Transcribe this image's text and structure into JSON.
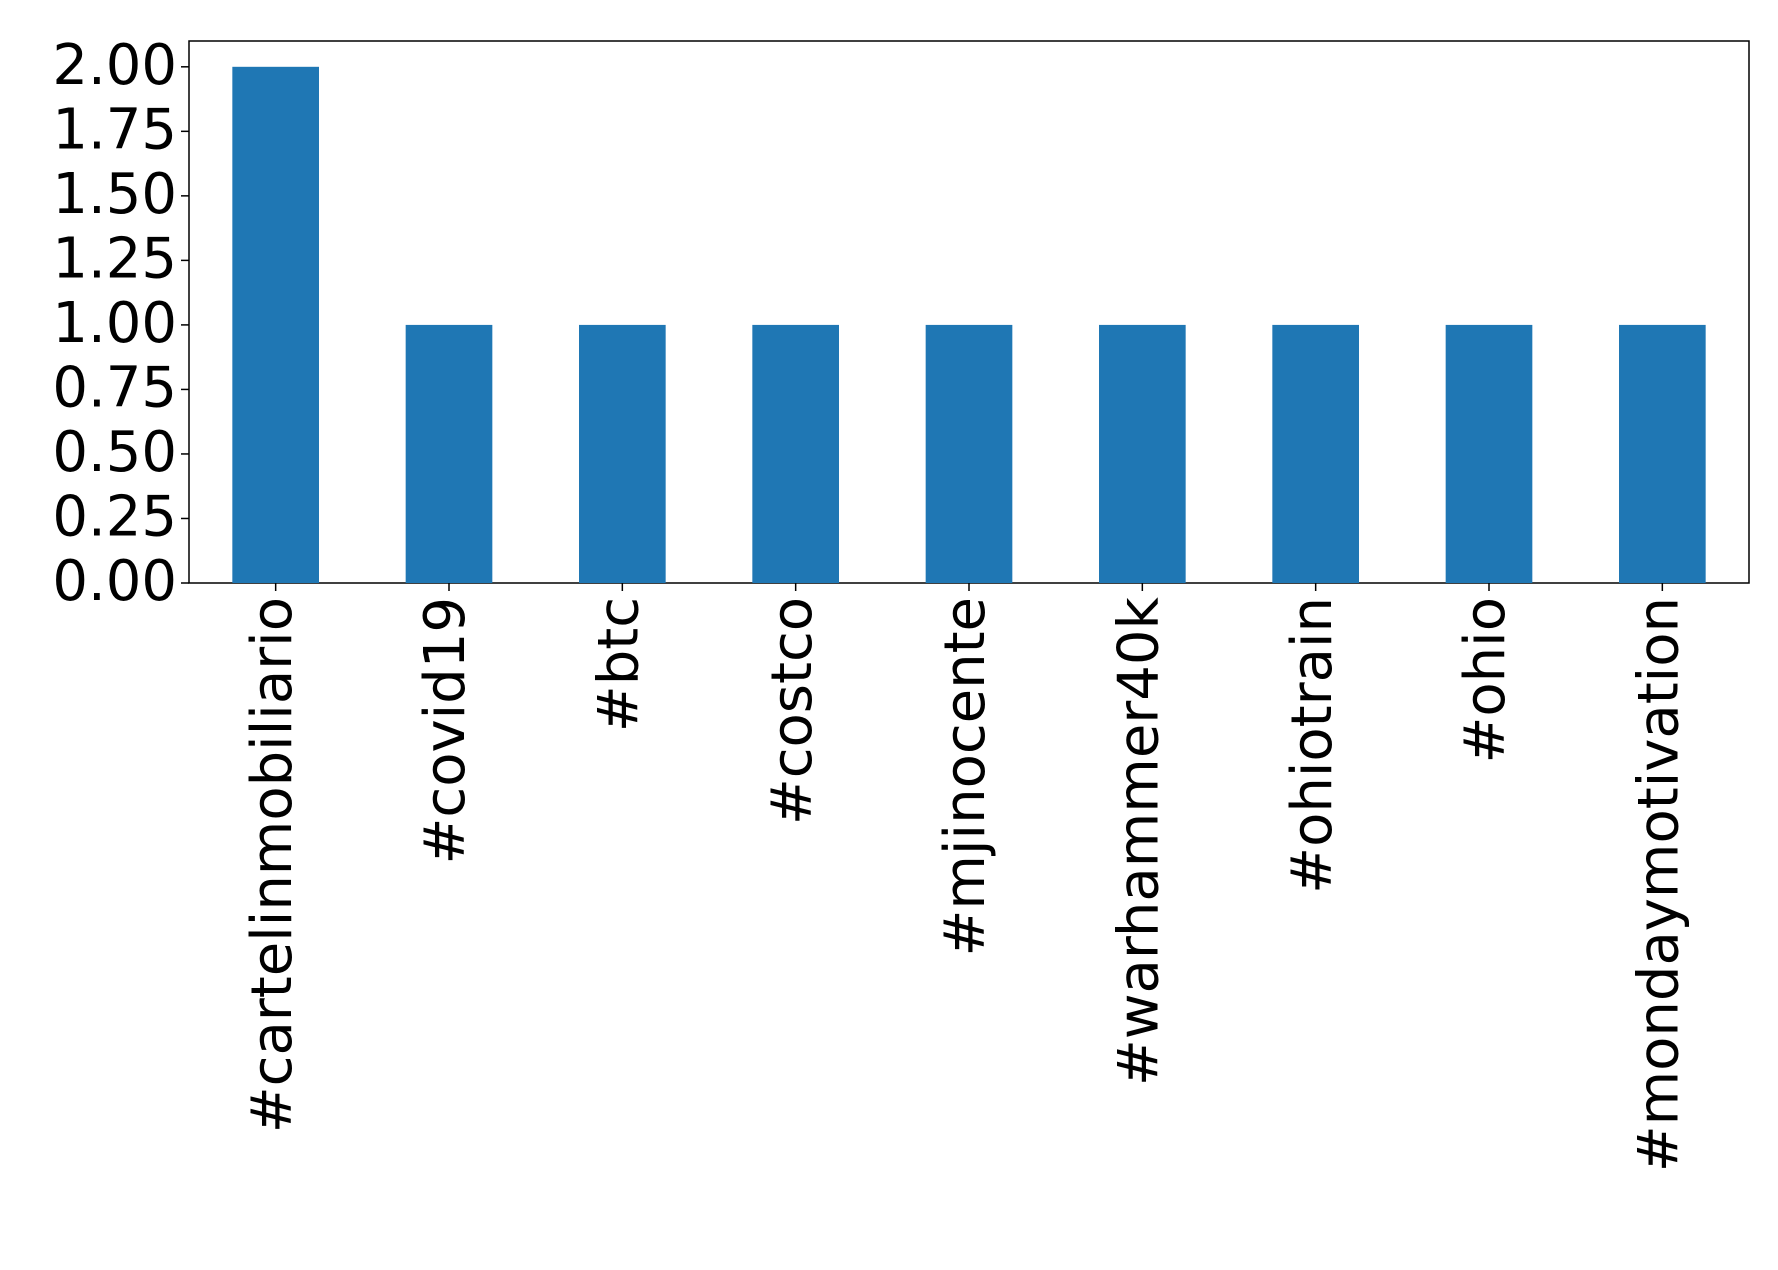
{
  "chart_data": {
    "type": "bar",
    "categories": [
      "#cartelinmobiliario",
      "#covid19",
      "#btc",
      "#costco",
      "#mjinocente",
      "#warhammer40k",
      "#ohiotrain",
      "#ohio",
      "#mondaymotivation"
    ],
    "values": [
      2,
      1,
      1,
      1,
      1,
      1,
      1,
      1,
      1
    ],
    "color": "#1f77b4",
    "ylim": [
      0,
      2.1
    ],
    "yticks": [
      {
        "value": 0,
        "label": "0.00"
      },
      {
        "value": 0.25,
        "label": "0.25"
      },
      {
        "value": 0.5,
        "label": "0.50"
      },
      {
        "value": 0.75,
        "label": "0.75"
      },
      {
        "value": 1,
        "label": "1.00"
      },
      {
        "value": 1.25,
        "label": "1.25"
      },
      {
        "value": 1.5,
        "label": "1.50"
      },
      {
        "value": 1.75,
        "label": "1.75"
      },
      {
        "value": 2,
        "label": "2.00"
      }
    ],
    "grid": false
  }
}
